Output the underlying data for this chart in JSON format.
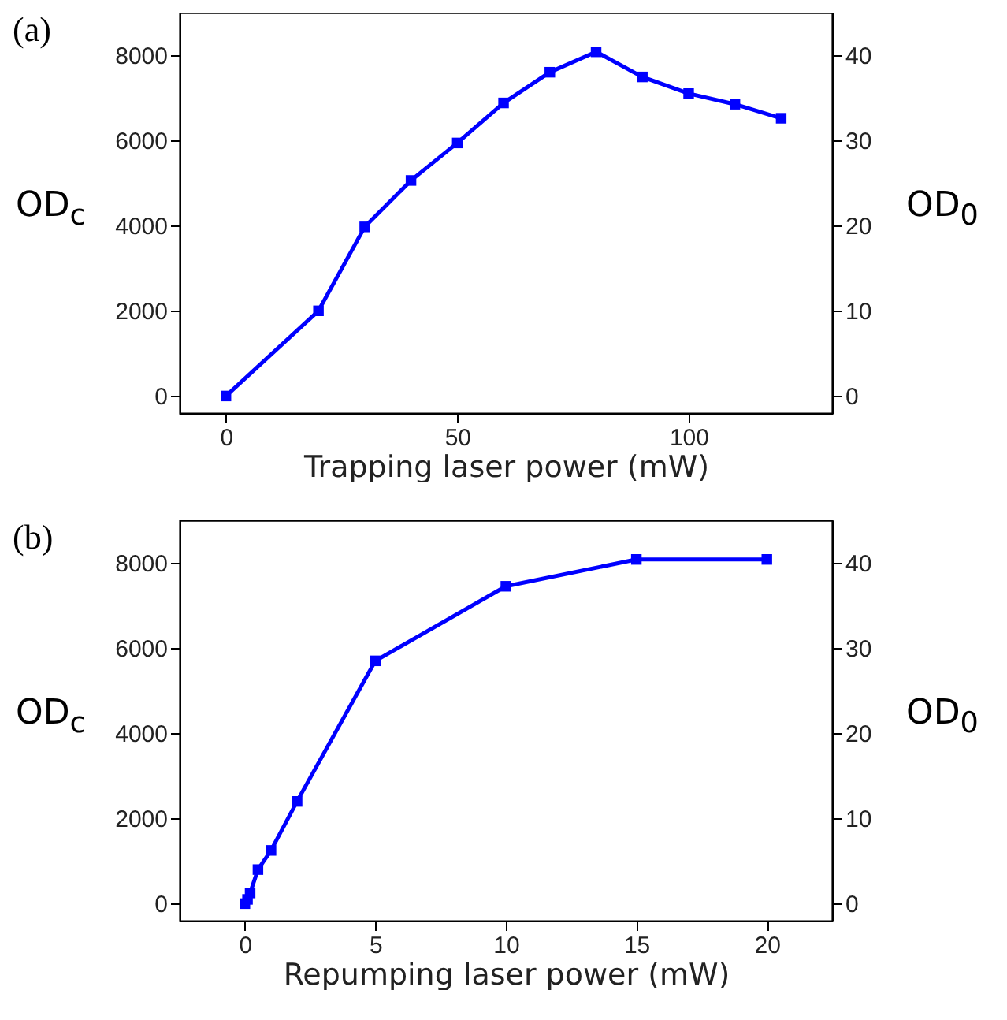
{
  "chart_data": [
    {
      "type": "line",
      "annotations": [
        "(a)"
      ],
      "xlabel": "Trapping laser power (mW)",
      "ylabel": "OD$_{c}$",
      "y2label": "OD$_{0}$",
      "x": [
        0,
        20,
        30,
        40,
        50,
        60,
        70,
        80,
        90,
        100,
        110,
        120
      ],
      "series": [
        {
          "color": "#0000ff",
          "values": [
            0,
            2000,
            3970,
            5060,
            5940,
            6880,
            7600,
            8080,
            7490,
            7100,
            6850,
            6520
          ]
        }
      ],
      "xlim": [
        -10,
        131
      ],
      "xticks": [
        0,
        50,
        100
      ],
      "ylim": [
        -400,
        9000
      ],
      "yticks": [
        0,
        2000,
        4000,
        6000,
        8000
      ],
      "y2lim": [
        -2,
        45
      ],
      "y2ticks": [
        0,
        10,
        20,
        30,
        40
      ],
      "marker": "square",
      "line_style": "solid"
    },
    {
      "type": "line",
      "annotations": [
        "(b)"
      ],
      "xlabel": "Repumping laser power (mW)",
      "ylabel": "OD$_{c}$",
      "y2label": "OD$_{0}$",
      "x": [
        0,
        0.1,
        0.2,
        0.5,
        1,
        2,
        5,
        10,
        15,
        20
      ],
      "series": [
        {
          "color": "#0000ff",
          "values": [
            0,
            100,
            250,
            800,
            1250,
            2400,
            5700,
            7450,
            8080,
            8080
          ]
        }
      ],
      "xlim": [
        -2.5,
        22.5
      ],
      "xticks": [
        0,
        5,
        10,
        15,
        20
      ],
      "ylim": [
        -400,
        9000
      ],
      "yticks": [
        0,
        2000,
        4000,
        6000,
        8000
      ],
      "y2lim": [
        -2,
        45
      ],
      "y2ticks": [
        0,
        10,
        20,
        30,
        40
      ],
      "marker": "square",
      "line_style": "solid"
    }
  ]
}
